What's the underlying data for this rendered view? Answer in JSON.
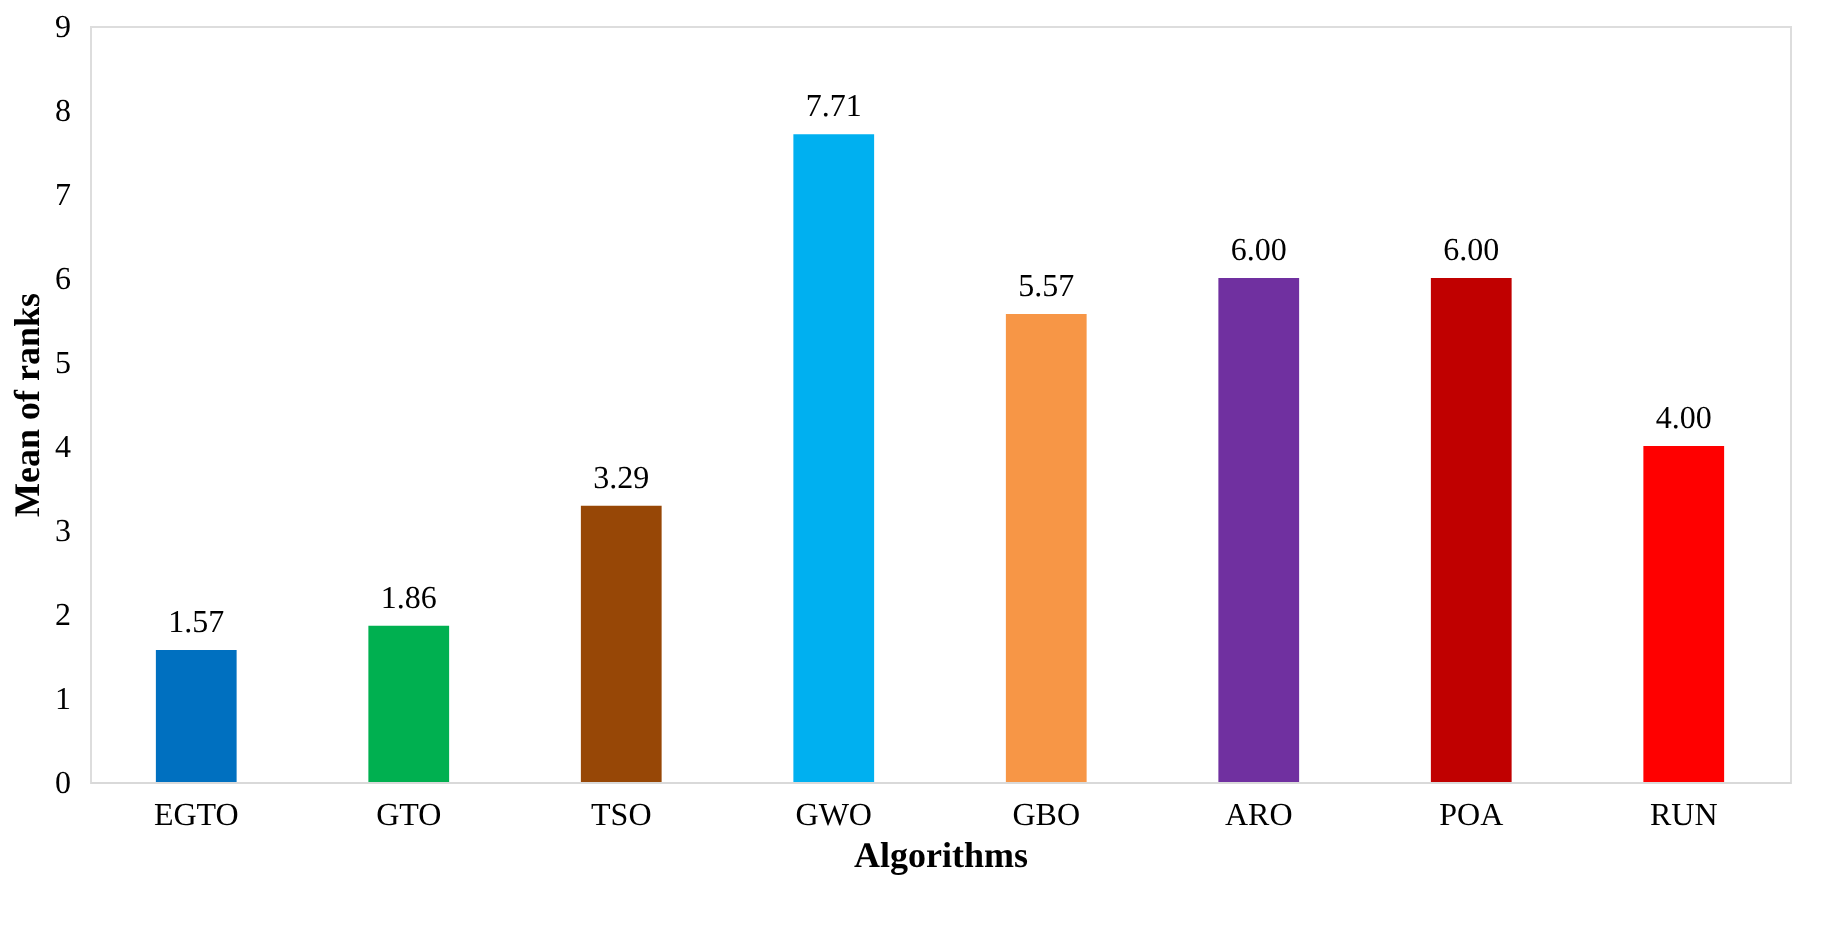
{
  "chart_data": {
    "type": "bar",
    "xlabel": "Algorithms",
    "ylabel": "Mean of ranks",
    "categories": [
      "EGTO",
      "GTO",
      "TSO",
      "GWO",
      "GBO",
      "ARO",
      "POA",
      "RUN"
    ],
    "values": [
      1.57,
      1.86,
      3.29,
      7.71,
      5.57,
      6.0,
      6.0,
      4.0
    ],
    "colors": [
      "#0070c0",
      "#00b050",
      "#974706",
      "#00b0f0",
      "#f79646",
      "#7030a0",
      "#c00000",
      "#ff0000"
    ],
    "value_labels": [
      "1.57",
      "1.86",
      "3.29",
      "7.71",
      "5.57",
      "6.00",
      "6.00",
      "4.00"
    ],
    "ylim": [
      0,
      9
    ],
    "yticks": [
      0,
      1,
      2,
      3,
      4,
      5,
      6,
      7,
      8,
      9
    ],
    "grid": false,
    "legend": false
  }
}
